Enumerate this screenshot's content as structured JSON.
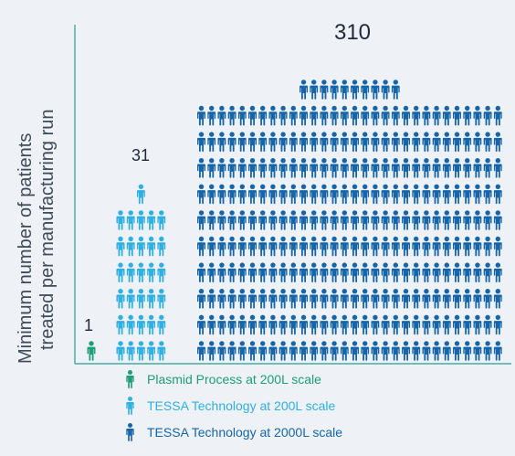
{
  "chart_data": {
    "type": "bar",
    "ylabel": "Minimum number of patients treated per manufacturing run",
    "ylabel_lines": [
      "Minimum number of patients",
      "treated per manufacturing run"
    ],
    "series": [
      {
        "name": "Plasmid Process at 200L scale",
        "value": 1,
        "label": "1",
        "color": "#1e9d78"
      },
      {
        "name": "TESSA Technology at 200L scale",
        "value": 31,
        "label": "31",
        "color": "#2fb0e0"
      },
      {
        "name": "TESSA Technology at 2000L scale",
        "value": 310,
        "label": "310",
        "color": "#1565a8"
      }
    ],
    "encoding": "pictogram",
    "icon": "person-icon",
    "axis_color": "#2a9d8f"
  }
}
